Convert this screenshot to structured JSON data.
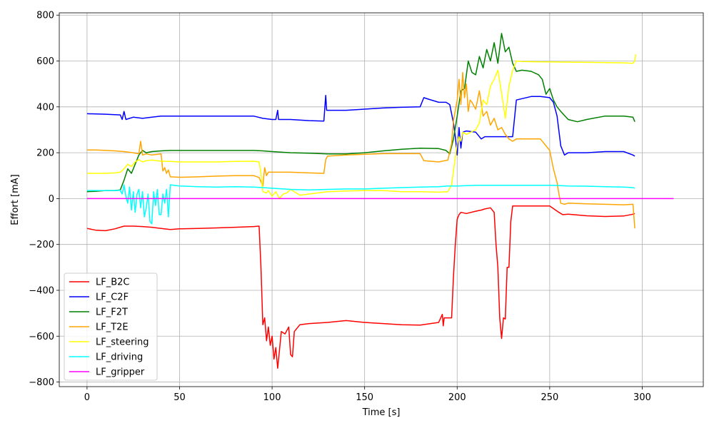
{
  "chart_data": {
    "type": "line",
    "title": "",
    "xlabel": "Time [s]",
    "ylabel": "Effort [mA]",
    "xlim": [
      -15,
      333
    ],
    "ylim": [
      -820,
      810
    ],
    "xticks": [
      0,
      50,
      100,
      150,
      200,
      250,
      300
    ],
    "yticks": [
      -800,
      -600,
      -400,
      -200,
      0,
      200,
      400,
      600,
      800
    ],
    "grid": true,
    "legend_position": "lower-left",
    "series": [
      {
        "name": "LF_B2C",
        "color": "#ff0000",
        "x": [
          0,
          5,
          10,
          15,
          20,
          25,
          30,
          35,
          40,
          45,
          50,
          60,
          70,
          80,
          90,
          93,
          94,
          95,
          96,
          97,
          98,
          99,
          100,
          101,
          102,
          103,
          105,
          107,
          109,
          110,
          111,
          112,
          115,
          120,
          130,
          140,
          150,
          160,
          170,
          180,
          190,
          192,
          192.5,
          193,
          197,
          198,
          199,
          200,
          201,
          202,
          205,
          210,
          213,
          215,
          218,
          220,
          221,
          222,
          223,
          224,
          225,
          226,
          227,
          228,
          229,
          230,
          232,
          240,
          250,
          255,
          257,
          260,
          270,
          280,
          290,
          295,
          296
        ],
        "y": [
          -130,
          -138,
          -140,
          -132,
          -120,
          -120,
          -122,
          -125,
          -130,
          -135,
          -132,
          -130,
          -128,
          -125,
          -122,
          -120,
          -300,
          -550,
          -520,
          -620,
          -560,
          -640,
          -600,
          -700,
          -650,
          -740,
          -580,
          -590,
          -560,
          -680,
          -690,
          -580,
          -550,
          -545,
          -540,
          -532,
          -540,
          -545,
          -550,
          -552,
          -540,
          -505,
          -555,
          -520,
          -520,
          -340,
          -200,
          -90,
          -70,
          -60,
          -65,
          -55,
          -50,
          -45,
          -40,
          -60,
          -200,
          -300,
          -520,
          -610,
          -520,
          -525,
          -300,
          -300,
          -100,
          -32,
          -32,
          -32,
          -32,
          -60,
          -70,
          -68,
          -75,
          -78,
          -76,
          -68,
          -65
        ]
      },
      {
        "name": "LF_C2F",
        "color": "#0000ff",
        "x": [
          0,
          10,
          18,
          19,
          20,
          21,
          25,
          30,
          35,
          40,
          50,
          60,
          70,
          80,
          90,
          95,
          100,
          102,
          103,
          103.5,
          104,
          110,
          120,
          128,
          129,
          129.5,
          130,
          140,
          150,
          160,
          170,
          180,
          182,
          184,
          190,
          194,
          196,
          198,
          199,
          200,
          201,
          202,
          203,
          205,
          210,
          213,
          215,
          220,
          225,
          230,
          232,
          240,
          245,
          250,
          252,
          254,
          256,
          258,
          260,
          270,
          280,
          290,
          295,
          296
        ],
        "y": [
          370,
          368,
          365,
          345,
          380,
          345,
          355,
          350,
          355,
          360,
          360,
          360,
          360,
          360,
          360,
          350,
          345,
          345,
          385,
          345,
          345,
          345,
          340,
          338,
          450,
          385,
          385,
          385,
          390,
          395,
          398,
          400,
          440,
          435,
          420,
          420,
          410,
          330,
          270,
          190,
          310,
          220,
          290,
          295,
          290,
          260,
          270,
          270,
          270,
          270,
          430,
          445,
          445,
          440,
          420,
          360,
          230,
          190,
          200,
          200,
          205,
          205,
          190,
          185
        ]
      },
      {
        "name": "LF_F2T",
        "color": "#008000",
        "x": [
          0,
          5,
          10,
          15,
          18,
          20,
          22,
          24,
          26,
          28,
          30,
          32,
          35,
          40,
          45,
          50,
          60,
          70,
          80,
          90,
          95,
          100,
          110,
          120,
          130,
          140,
          150,
          160,
          170,
          180,
          190,
          194,
          196,
          198,
          200,
          202,
          204,
          206,
          208,
          210,
          212,
          214,
          216,
          218,
          220,
          222,
          224,
          226,
          228,
          230,
          232,
          235,
          240,
          244,
          246,
          248,
          250,
          252,
          254,
          256,
          260,
          265,
          270,
          280,
          290,
          295,
          296
        ],
        "y": [
          30,
          32,
          35,
          35,
          38,
          80,
          130,
          110,
          150,
          190,
          210,
          200,
          205,
          208,
          210,
          210,
          210,
          210,
          210,
          210,
          208,
          205,
          200,
          198,
          195,
          195,
          200,
          208,
          215,
          220,
          218,
          210,
          195,
          260,
          360,
          470,
          480,
          600,
          550,
          540,
          620,
          570,
          650,
          600,
          680,
          590,
          720,
          640,
          660,
          590,
          555,
          560,
          555,
          540,
          520,
          455,
          480,
          430,
          400,
          380,
          345,
          335,
          345,
          360,
          360,
          355,
          335
        ]
      },
      {
        "name": "LF_T2E",
        "color": "#ffa500",
        "x": [
          0,
          5,
          10,
          15,
          20,
          25,
          28,
          29,
          30,
          32,
          35,
          40,
          41,
          42,
          43,
          44,
          45,
          50,
          60,
          70,
          80,
          90,
          93,
          95,
          96,
          97,
          98,
          100,
          110,
          120,
          128,
          129,
          130,
          140,
          150,
          160,
          170,
          180,
          182,
          190,
          195,
          197,
          198,
          200,
          201,
          202,
          203,
          204,
          205,
          206,
          207,
          208,
          210,
          212,
          214,
          216,
          218,
          220,
          222,
          224,
          226,
          228,
          230,
          232,
          235,
          240,
          245,
          250,
          252,
          254,
          255,
          256,
          258,
          260,
          270,
          280,
          290,
          295,
          296
        ],
        "y": [
          212,
          212,
          210,
          208,
          205,
          200,
          195,
          250,
          190,
          195,
          190,
          195,
          120,
          135,
          110,
          125,
          95,
          93,
          95,
          98,
          100,
          100,
          92,
          55,
          135,
          100,
          115,
          115,
          115,
          112,
          110,
          170,
          185,
          190,
          193,
          196,
          196,
          196,
          165,
          160,
          168,
          240,
          340,
          430,
          520,
          410,
          550,
          440,
          500,
          380,
          430,
          420,
          390,
          470,
          360,
          380,
          320,
          350,
          300,
          310,
          280,
          260,
          250,
          260,
          260,
          260,
          260,
          210,
          130,
          70,
          20,
          -20,
          -25,
          -20,
          -23,
          -25,
          -27,
          -25,
          -130
        ]
      },
      {
        "name": "LF_steering",
        "color": "#ffff00",
        "x": [
          0,
          5,
          10,
          15,
          18,
          20,
          22,
          24,
          26,
          28,
          30,
          32,
          35,
          40,
          45,
          50,
          60,
          70,
          80,
          90,
          93,
          94,
          95,
          97,
          98,
          100,
          102,
          104,
          106,
          108,
          110,
          115,
          120,
          130,
          140,
          150,
          160,
          170,
          180,
          190,
          195,
          197,
          198,
          199,
          200,
          201,
          202,
          203,
          205,
          210,
          212,
          214,
          216,
          218,
          220,
          222,
          224,
          226,
          228,
          230,
          232,
          235,
          240,
          250,
          260,
          270,
          280,
          290,
          295,
          296,
          296.5
        ],
        "y": [
          110,
          110,
          110,
          112,
          115,
          130,
          150,
          140,
          160,
          170,
          160,
          165,
          168,
          163,
          162,
          160,
          160,
          160,
          162,
          163,
          160,
          110,
          30,
          25,
          35,
          10,
          30,
          0,
          20,
          25,
          40,
          15,
          20,
          30,
          33,
          35,
          35,
          30,
          30,
          28,
          30,
          60,
          120,
          180,
          240,
          270,
          250,
          290,
          280,
          300,
          330,
          430,
          410,
          490,
          520,
          560,
          460,
          350,
          490,
          560,
          600,
          598,
          597,
          596,
          595,
          594,
          593,
          592,
          590,
          600,
          630
        ]
      },
      {
        "name": "LF_driving",
        "color": "#00ffff",
        "x": [
          0,
          5,
          10,
          15,
          18,
          19,
          20,
          21,
          22,
          23,
          24,
          25,
          26,
          27,
          28,
          29,
          30,
          31,
          32,
          33,
          34,
          35,
          36,
          37,
          38,
          39,
          40,
          41,
          42,
          43,
          44,
          45,
          50,
          60,
          70,
          80,
          90,
          95,
          100,
          110,
          120,
          130,
          140,
          150,
          160,
          170,
          180,
          190,
          195,
          200,
          210,
          220,
          230,
          240,
          250,
          255,
          260,
          270,
          280,
          290,
          295,
          296
        ],
        "y": [
          35,
          35,
          35,
          35,
          36,
          20,
          60,
          10,
          -20,
          50,
          -50,
          30,
          -60,
          20,
          40,
          -40,
          30,
          -80,
          -40,
          20,
          -100,
          -110,
          30,
          -30,
          40,
          -70,
          -70,
          20,
          -20,
          40,
          -80,
          60,
          55,
          52,
          50,
          52,
          50,
          48,
          45,
          40,
          38,
          40,
          42,
          42,
          45,
          48,
          50,
          52,
          55,
          55,
          58,
          58,
          58,
          58,
          58,
          57,
          55,
          54,
          52,
          50,
          48,
          45
        ]
      },
      {
        "name": "LF_gripper",
        "color": "#ff00ff",
        "x": [
          0,
          50,
          100,
          150,
          200,
          250,
          300,
          317
        ],
        "y": [
          0,
          0,
          0,
          0,
          0,
          0,
          0,
          0
        ]
      }
    ]
  }
}
